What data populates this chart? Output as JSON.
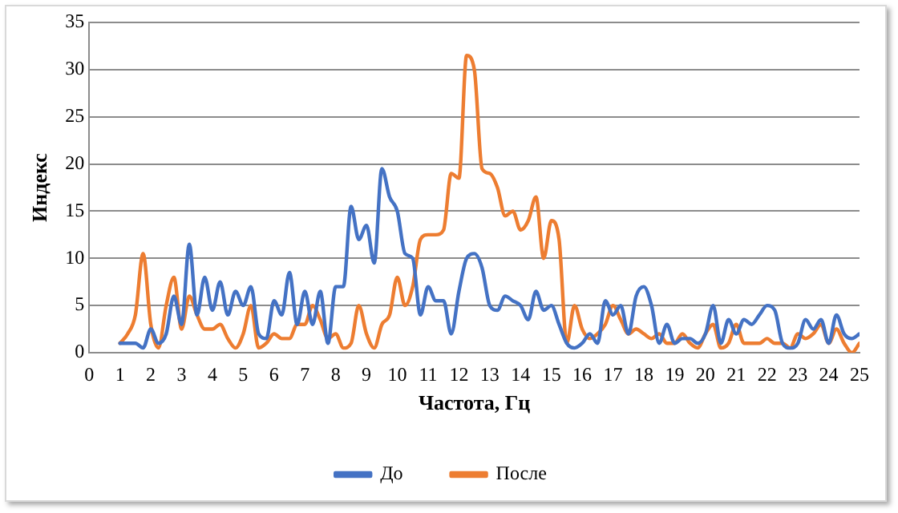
{
  "chart_data": {
    "type": "line",
    "xlabel": "Частота, Гц",
    "ylabel": "Индекс",
    "x": [
      1,
      1.25,
      1.5,
      1.75,
      2,
      2.25,
      2.5,
      2.75,
      3,
      3.25,
      3.5,
      3.75,
      4,
      4.25,
      4.5,
      4.75,
      5,
      5.25,
      5.5,
      5.75,
      6,
      6.25,
      6.5,
      6.75,
      7,
      7.25,
      7.5,
      7.75,
      8,
      8.25,
      8.5,
      8.75,
      9,
      9.25,
      9.5,
      9.75,
      10,
      10.25,
      10.5,
      10.75,
      11,
      11.25,
      11.5,
      11.75,
      12,
      12.25,
      12.5,
      12.75,
      13,
      13.25,
      13.5,
      13.75,
      14,
      14.25,
      14.5,
      14.75,
      15,
      15.25,
      15.5,
      15.75,
      16,
      16.25,
      16.5,
      16.75,
      17,
      17.25,
      17.5,
      17.75,
      18,
      18.25,
      18.5,
      18.75,
      19,
      19.25,
      19.5,
      19.75,
      20,
      20.25,
      20.5,
      20.75,
      21,
      21.25,
      21.5,
      21.75,
      22,
      22.25,
      22.5,
      22.75,
      23,
      23.25,
      23.5,
      23.75,
      24,
      24.25,
      24.5,
      24.75,
      25
    ],
    "series": [
      {
        "name": "До",
        "color": "#4472c4",
        "values": [
          1,
          1,
          1,
          0.5,
          2.5,
          1,
          2,
          6,
          3,
          11.5,
          4,
          8,
          4.5,
          7.5,
          4,
          6.5,
          5,
          7,
          2,
          1.5,
          5.5,
          4,
          8.5,
          3,
          6.5,
          3,
          6.5,
          1,
          7,
          7,
          15.5,
          12,
          13.5,
          9.5,
          19.5,
          16.5,
          15,
          10.5,
          10,
          4,
          7,
          5.5,
          5.5,
          2,
          6.5,
          10,
          10.5,
          9,
          5,
          4.5,
          6,
          5.5,
          5,
          3.5,
          6.5,
          4.5,
          5,
          3,
          1,
          0.5,
          1,
          2,
          1,
          5.5,
          4,
          5,
          2,
          6,
          7,
          5,
          1,
          3,
          1,
          1.5,
          1.5,
          1,
          2,
          5,
          1,
          3.5,
          2,
          3.5,
          3,
          4,
          5,
          4.5,
          1,
          0.5,
          1,
          3.5,
          2.5,
          3.5,
          1,
          4,
          2,
          1.5,
          2
        ]
      },
      {
        "name": "После",
        "color": "#ed7d31",
        "values": [
          1,
          2,
          4,
          10.5,
          3,
          0.5,
          5,
          8,
          2.5,
          6,
          4,
          2.5,
          2.5,
          3,
          1.5,
          0.5,
          2,
          5,
          0.5,
          1,
          2,
          1.5,
          1.5,
          3,
          3,
          5,
          3.5,
          1.5,
          2,
          0.5,
          1,
          5,
          2,
          0.5,
          3,
          4,
          8,
          5,
          7,
          12,
          12.5,
          12.5,
          13,
          19,
          18.5,
          31.5,
          30,
          19.5,
          19,
          17.5,
          14.5,
          15,
          13,
          14,
          16.5,
          10,
          14,
          12,
          1,
          5,
          2.5,
          1.5,
          2,
          3,
          5,
          3.5,
          2,
          2.5,
          2,
          1.5,
          2,
          1,
          1,
          2,
          1,
          0.5,
          2,
          3,
          0.5,
          1,
          3,
          1,
          1,
          1,
          1.5,
          1,
          1,
          0.5,
          2,
          1.5,
          2,
          3,
          1,
          2.5,
          1,
          0,
          1
        ]
      }
    ],
    "xlim": [
      0,
      25
    ],
    "xticks": [
      0,
      1,
      2,
      3,
      4,
      5,
      6,
      7,
      8,
      9,
      10,
      11,
      12,
      13,
      14,
      15,
      16,
      17,
      18,
      19,
      20,
      21,
      22,
      23,
      24,
      25
    ],
    "ylim": [
      0,
      35
    ],
    "yticks": [
      0,
      5,
      10,
      15,
      20,
      25,
      30,
      35
    ],
    "grid": "y",
    "legend": "bottom",
    "marker": "none",
    "line_style": "solid"
  }
}
